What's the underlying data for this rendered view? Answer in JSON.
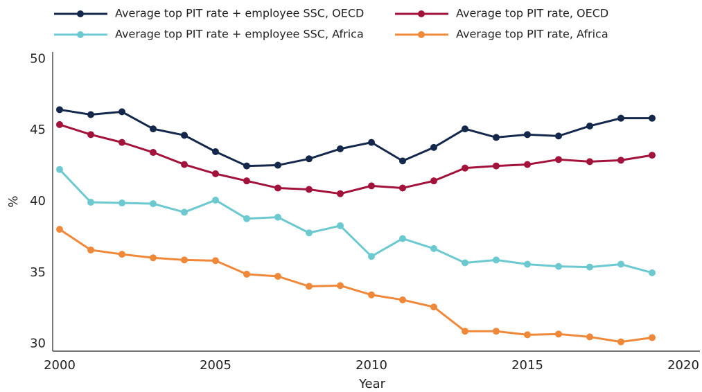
{
  "chart_data": {
    "type": "line",
    "x_label": "Year",
    "y_label": "%",
    "x": [
      2000,
      2001,
      2002,
      2003,
      2004,
      2005,
      2006,
      2007,
      2008,
      2009,
      2010,
      2011,
      2012,
      2013,
      2014,
      2015,
      2016,
      2017,
      2018,
      2019
    ],
    "series": [
      {
        "name": "Average top PIT rate + employee SSC, OECD",
        "color": "#14284b",
        "values": [
          46.45,
          46.1,
          46.3,
          45.1,
          44.65,
          43.5,
          42.5,
          42.55,
          43.0,
          43.7,
          44.15,
          42.85,
          43.8,
          45.1,
          44.5,
          44.7,
          44.6,
          45.3,
          45.85,
          45.85
        ]
      },
      {
        "name": "Average top PIT rate, OECD",
        "color": "#a3123a",
        "values": [
          45.4,
          44.7,
          44.15,
          43.45,
          42.6,
          41.95,
          41.45,
          40.95,
          40.85,
          40.55,
          41.1,
          40.95,
          41.45,
          42.35,
          42.5,
          42.6,
          42.95,
          42.8,
          42.9,
          43.25
        ]
      },
      {
        "name": "Average top PIT rate + employee SSC, Africa",
        "color": "#6cc9d0",
        "values": [
          42.25,
          39.95,
          39.9,
          39.85,
          39.25,
          40.1,
          38.8,
          38.9,
          37.8,
          38.3,
          36.15,
          37.4,
          36.7,
          35.7,
          35.9,
          35.6,
          35.45,
          35.4,
          35.6,
          35.0
        ]
      },
      {
        "name": "Average top PIT rate, Africa",
        "color": "#f0883a",
        "values": [
          38.05,
          36.6,
          36.3,
          36.05,
          35.9,
          35.85,
          34.9,
          34.75,
          34.05,
          34.1,
          33.45,
          33.1,
          32.6,
          30.9,
          30.9,
          30.65,
          30.7,
          30.5,
          30.15,
          30.45
        ]
      }
    ],
    "xlim": [
      2000,
      2020
    ],
    "xticks": [
      2000,
      2005,
      2010,
      2015,
      2020
    ],
    "ylim": [
      29.5,
      50.5
    ],
    "yticks": [
      30,
      35,
      40,
      45,
      50
    ],
    "grid": false,
    "legend": "top"
  }
}
